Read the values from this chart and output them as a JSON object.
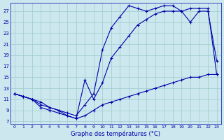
{
  "xlabel": "Graphe des températures (°C)",
  "bg_color": "#cce8ee",
  "line_color": "#0000aa",
  "grid_color": "#99cccc",
  "xlim": [
    -0.5,
    23.5
  ],
  "ylim": [
    6.5,
    28.5
  ],
  "xticks": [
    0,
    1,
    2,
    3,
    4,
    5,
    6,
    7,
    8,
    9,
    10,
    11,
    12,
    13,
    14,
    15,
    16,
    17,
    18,
    19,
    20,
    21,
    22,
    23
  ],
  "yticks": [
    7,
    9,
    11,
    13,
    15,
    17,
    19,
    21,
    23,
    25,
    27
  ],
  "series1_x": [
    0,
    1,
    2,
    3,
    4,
    5,
    6,
    7,
    8,
    9,
    10,
    11,
    12,
    13,
    14,
    15,
    16,
    17,
    18,
    19,
    20,
    21,
    22,
    23
  ],
  "series1_y": [
    12.0,
    11.5,
    11.0,
    10.5,
    9.5,
    9.0,
    8.0,
    7.5,
    8.0,
    9.0,
    10.0,
    10.5,
    11.0,
    11.5,
    12.0,
    12.5,
    13.0,
    13.5,
    14.0,
    14.5,
    15.0,
    15.0,
    15.5,
    15.5
  ],
  "series2_x": [
    0,
    1,
    2,
    3,
    4,
    5,
    6,
    7,
    8,
    9,
    10,
    11,
    12,
    13,
    14,
    15,
    16,
    17,
    18,
    19,
    20,
    21,
    22,
    23
  ],
  "series2_y": [
    12.0,
    11.5,
    11.0,
    9.5,
    9.0,
    8.5,
    8.0,
    7.5,
    14.5,
    11.0,
    14.0,
    18.5,
    20.5,
    22.5,
    24.5,
    25.5,
    26.5,
    27.0,
    27.0,
    27.0,
    25.0,
    27.0,
    27.0,
    18.0
  ],
  "series3_x": [
    0,
    1,
    2,
    3,
    4,
    5,
    6,
    7,
    8,
    9,
    10,
    11,
    12,
    13,
    14,
    15,
    16,
    17,
    18,
    19,
    20,
    21,
    22,
    23
  ],
  "series3_y": [
    12.0,
    11.5,
    11.0,
    10.0,
    9.5,
    9.0,
    8.5,
    8.0,
    10.0,
    12.0,
    20.0,
    24.0,
    26.0,
    28.0,
    27.5,
    27.0,
    27.5,
    28.0,
    28.0,
    27.0,
    27.5,
    27.5,
    27.5,
    15.5
  ]
}
